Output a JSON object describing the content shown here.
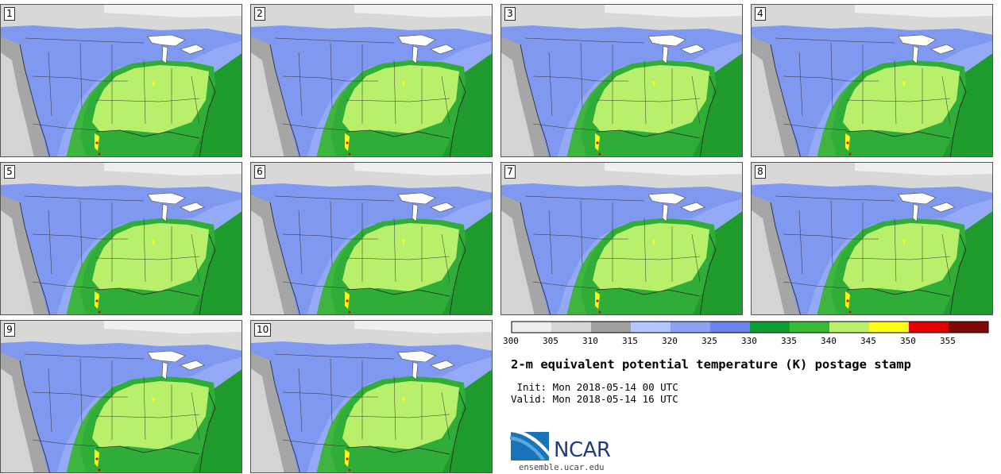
{
  "panels": [
    {
      "label": "1"
    },
    {
      "label": "2"
    },
    {
      "label": "3"
    },
    {
      "label": "4"
    },
    {
      "label": "5"
    },
    {
      "label": "6"
    },
    {
      "label": "7"
    },
    {
      "label": "8"
    },
    {
      "label": "9"
    },
    {
      "label": "10"
    }
  ],
  "colorbar": {
    "ticks": [
      "300",
      "305",
      "310",
      "315",
      "320",
      "325",
      "330",
      "335",
      "340",
      "345",
      "350",
      "355"
    ],
    "colors": [
      "#eeeeee",
      "#d6d6d6",
      "#a0a0a0",
      "#b4c6ff",
      "#8aa3f5",
      "#6b84f0",
      "#0aa032",
      "#38bb38",
      "#b8f06c",
      "#ffff14",
      "#e50000",
      "#820808"
    ]
  },
  "title": "2-m equivalent potential temperature (K) postage stamp",
  "init": " Init: Mon 2018-05-14 00 UTC",
  "valid": "Valid: Mon 2018-05-14 16 UTC",
  "logo": {
    "name": "NCAR",
    "site": "ensemble.ucar.edu"
  },
  "colors": {
    "ocean": "#2e9e36",
    "land_cold": "#95aaf7",
    "land_warm": "#9fe065",
    "gray": "#a6a6a6"
  }
}
